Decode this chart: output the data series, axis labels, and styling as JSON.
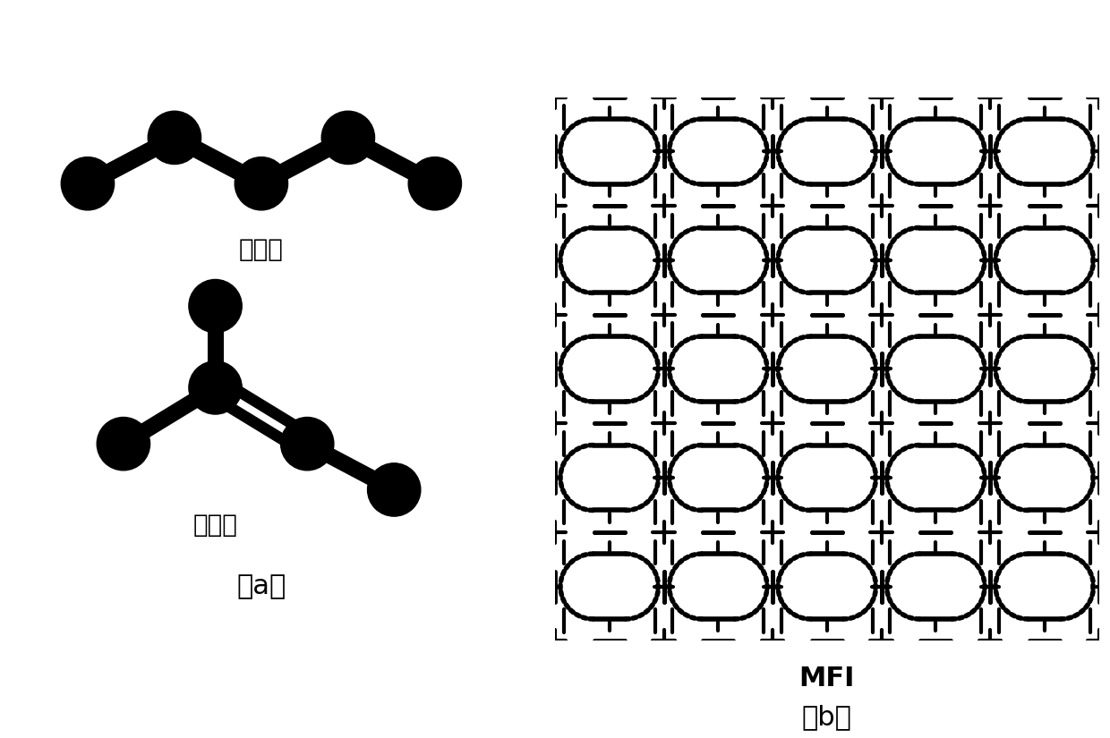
{
  "background_color": "#ffffff",
  "title_a": "（a）",
  "title_b": "（b）",
  "npentane_label": "正戊烷",
  "isopentane_label": "异戊烷",
  "mfi_label": "MFI",
  "node_color": "#000000",
  "edge_color": "#000000",
  "label_text_color": "#000000",
  "label_fontsize": 20,
  "subtitle_fontsize": 22
}
